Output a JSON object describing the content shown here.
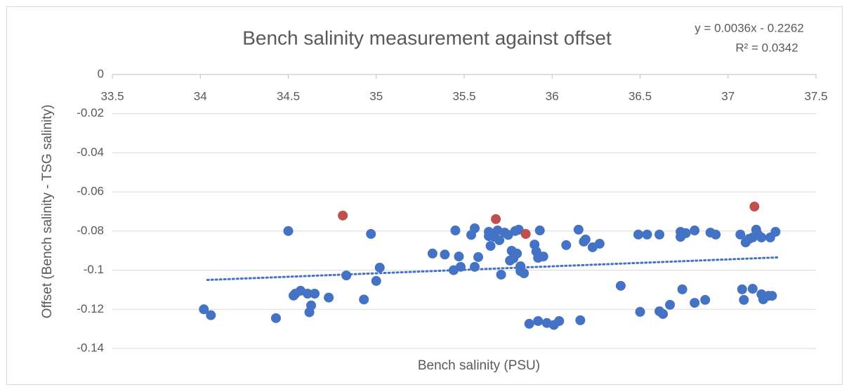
{
  "chart_data": {
    "type": "scatter",
    "title": "Bench salinity measurement against offset",
    "x_label": "Bench salinity (PSU)",
    "y_label": "Offset  (Bench salinity - TSG salinity)",
    "annotations": [
      "y = 0.0036x - 0.2262",
      "R² = 0.0342"
    ],
    "xlim": [
      33.5,
      37.5
    ],
    "xticks": [
      33.5,
      34,
      34.5,
      35,
      35.5,
      36,
      36.5,
      37,
      37.5
    ],
    "ylim": [
      -0.14,
      0
    ],
    "yticks": [
      0,
      -0.02,
      -0.04,
      -0.06,
      -0.08,
      -0.1,
      -0.12,
      -0.14
    ],
    "grid": true,
    "series": [
      {
        "color": "#4472c4",
        "x": [
          34.02,
          34.06,
          34.43,
          34.5,
          34.53,
          34.54,
          34.57,
          34.61,
          34.65,
          34.63,
          34.62,
          34.73,
          34.83,
          34.93,
          34.97,
          35.0,
          35.02,
          35.32,
          35.39,
          35.44,
          35.45,
          35.47,
          35.48,
          35.54,
          35.56,
          35.56,
          35.58,
          35.64,
          35.64,
          35.65,
          35.67,
          35.69,
          35.7,
          35.71,
          35.73,
          35.75,
          35.76,
          35.77,
          35.78,
          35.8,
          35.79,
          35.81,
          35.82,
          35.82,
          35.84,
          35.87,
          35.92,
          35.9,
          35.91,
          35.92,
          35.93,
          35.95,
          35.97,
          36.01,
          36.04,
          36.08,
          36.15,
          36.16,
          36.18,
          36.19,
          36.23,
          36.27,
          36.39,
          36.49,
          36.5,
          36.54,
          36.61,
          36.61,
          36.63,
          36.67,
          36.73,
          36.73,
          36.76,
          36.74,
          36.81,
          36.81,
          36.87,
          36.9,
          36.93,
          37.07,
          37.08,
          37.09,
          37.1,
          37.12,
          37.14,
          37.14,
          37.16,
          37.17,
          37.19,
          37.19,
          37.2,
          37.23,
          37.24,
          37.25,
          37.27
        ],
        "values": [
          -0.12,
          -0.123,
          -0.1245,
          -0.08,
          -0.113,
          -0.112,
          -0.1105,
          -0.112,
          -0.112,
          -0.118,
          -0.1215,
          -0.114,
          -0.1027,
          -0.115,
          -0.0815,
          -0.1055,
          -0.0987,
          -0.0915,
          -0.092,
          -0.1,
          -0.0797,
          -0.093,
          -0.0983,
          -0.082,
          -0.0786,
          -0.0983,
          -0.0933,
          -0.0804,
          -0.0826,
          -0.0876,
          -0.0829,
          -0.0797,
          -0.0847,
          -0.1023,
          -0.0808,
          -0.082,
          -0.0951,
          -0.0901,
          -0.094,
          -0.0915,
          -0.08,
          -0.0793,
          -0.098,
          -0.1005,
          -0.1016,
          -0.1274,
          -0.126,
          -0.0869,
          -0.0905,
          -0.0937,
          -0.0797,
          -0.093,
          -0.127,
          -0.128,
          -0.126,
          -0.0872,
          -0.0793,
          -0.1256,
          -0.0854,
          -0.0843,
          -0.0883,
          -0.0865,
          -0.108,
          -0.0818,
          -0.1213,
          -0.0818,
          -0.0818,
          -0.121,
          -0.1224,
          -0.1177,
          -0.0804,
          -0.083,
          -0.0811,
          -0.1098,
          -0.0797,
          -0.1167,
          -0.1152,
          -0.0808,
          -0.0818,
          -0.0818,
          -0.1098,
          -0.1152,
          -0.0858,
          -0.084,
          -0.0833,
          -0.1095,
          -0.0793,
          -0.0818,
          -0.0833,
          -0.1123,
          -0.1149,
          -0.1131,
          -0.0833,
          -0.1131,
          -0.0804
        ]
      },
      {
        "color": "#c0504d",
        "x": [
          34.81,
          35.68,
          35.85,
          37.15
        ],
        "values": [
          -0.0721,
          -0.0739,
          -0.0815,
          -0.0675
        ]
      }
    ],
    "trendline": {
      "color": "#4472c4",
      "x": [
        34.04,
        37.28
      ],
      "values": [
        -0.105,
        -0.0935
      ]
    }
  }
}
